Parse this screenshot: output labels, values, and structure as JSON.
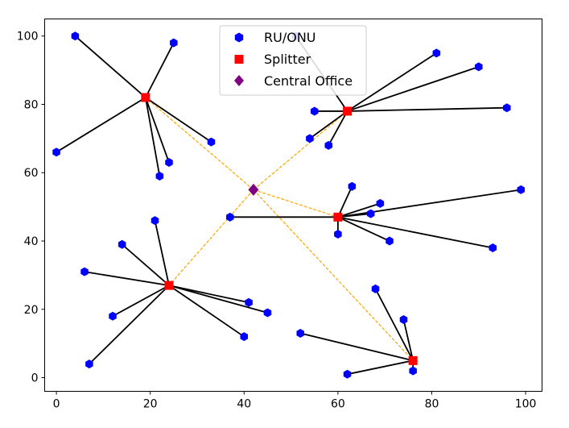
{
  "chart_data": {
    "type": "scatter",
    "xlim": [
      -2.5,
      103.5
    ],
    "ylim": [
      -4,
      105
    ],
    "xticks": [
      0,
      20,
      40,
      60,
      80,
      100
    ],
    "yticks": [
      0,
      20,
      40,
      60,
      80,
      100
    ],
    "grid": false,
    "legend": {
      "placement": "top-center",
      "entries": [
        {
          "label": "RU/ONU",
          "marker": "hexagon",
          "color": "#0000ff"
        },
        {
          "label": "Splitter",
          "marker": "square",
          "color": "#ff0000"
        },
        {
          "label": "Central Office",
          "marker": "diamond",
          "color": "#800080"
        }
      ]
    },
    "central_office": {
      "x": 42,
      "y": 55
    },
    "splitters": [
      {
        "x": 19,
        "y": 82
      },
      {
        "x": 62,
        "y": 78
      },
      {
        "x": 60,
        "y": 47
      },
      {
        "x": 24,
        "y": 27
      },
      {
        "x": 76,
        "y": 5
      }
    ],
    "ru_onu": [
      {
        "x": 4,
        "y": 100,
        "splitter": 0
      },
      {
        "x": 25,
        "y": 98,
        "splitter": 0
      },
      {
        "x": 0,
        "y": 66,
        "splitter": 0
      },
      {
        "x": 33,
        "y": 69,
        "splitter": 0
      },
      {
        "x": 24,
        "y": 63,
        "splitter": 0
      },
      {
        "x": 22,
        "y": 59,
        "splitter": 0
      },
      {
        "x": 51,
        "y": 100,
        "splitter": 1
      },
      {
        "x": 81,
        "y": 95,
        "splitter": 1
      },
      {
        "x": 90,
        "y": 91,
        "splitter": 1
      },
      {
        "x": 96,
        "y": 79,
        "splitter": 1
      },
      {
        "x": 55,
        "y": 78,
        "splitter": 1
      },
      {
        "x": 54,
        "y": 70,
        "splitter": 1
      },
      {
        "x": 58,
        "y": 68,
        "splitter": 1
      },
      {
        "x": 63,
        "y": 56,
        "splitter": 2
      },
      {
        "x": 69,
        "y": 51,
        "splitter": 2
      },
      {
        "x": 67,
        "y": 48,
        "splitter": 2
      },
      {
        "x": 99,
        "y": 55,
        "splitter": 2
      },
      {
        "x": 37,
        "y": 47,
        "splitter": 2
      },
      {
        "x": 60,
        "y": 42,
        "splitter": 2
      },
      {
        "x": 71,
        "y": 40,
        "splitter": 2
      },
      {
        "x": 93,
        "y": 38,
        "splitter": 2
      },
      {
        "x": 21,
        "y": 46,
        "splitter": 3
      },
      {
        "x": 14,
        "y": 39,
        "splitter": 3
      },
      {
        "x": 6,
        "y": 31,
        "splitter": 3
      },
      {
        "x": 12,
        "y": 18,
        "splitter": 3
      },
      {
        "x": 7,
        "y": 4,
        "splitter": 3
      },
      {
        "x": 41,
        "y": 22,
        "splitter": 3
      },
      {
        "x": 45,
        "y": 19,
        "splitter": 3
      },
      {
        "x": 40,
        "y": 12,
        "splitter": 3
      },
      {
        "x": 68,
        "y": 26,
        "splitter": 4
      },
      {
        "x": 74,
        "y": 17,
        "splitter": 4
      },
      {
        "x": 52,
        "y": 13,
        "splitter": 4
      },
      {
        "x": 62,
        "y": 1,
        "splitter": 4
      },
      {
        "x": 76,
        "y": 2,
        "splitter": 4
      }
    ],
    "colors": {
      "ru_onu": "#0000ff",
      "splitter": "#ff0000",
      "central_office": "#800080",
      "feeder_line": "#ffa500",
      "drop_line": "#000000"
    }
  }
}
